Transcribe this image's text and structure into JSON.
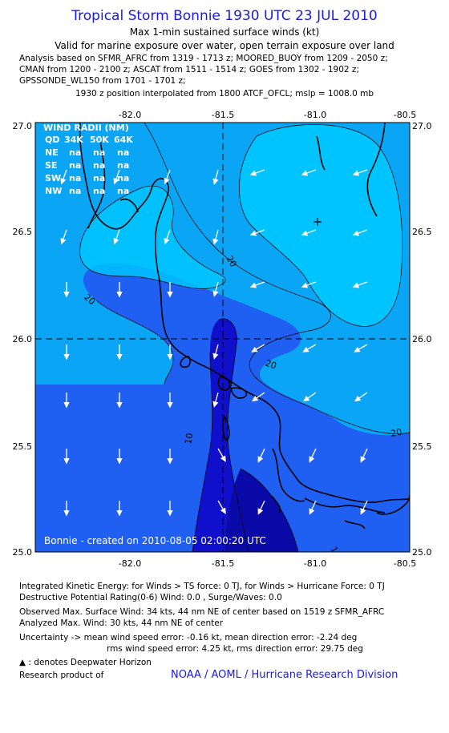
{
  "header": {
    "title": "Tropical Storm Bonnie 1930 UTC 23 JUL 2010",
    "subtitle": "Max 1-min sustained surface winds (kt)",
    "valid_line": "Valid for marine exposure over water, open terrain exposure over land",
    "analysis_lines": [
      "Analysis based on SFMR_AFRC from 1319 - 1713 z; MOORED_BUOY from 1209 - 2050 z;",
      "CMAN from 1200 - 2100 z; ASCAT from 1511 - 1514 z; GOES from 1302 - 1902 z;",
      "GPSSONDE_WL150 from 1701 - 1701 z;"
    ],
    "interpolation_line": "1930 z position interpolated from 1800 ATCF_OFCL; mslp = 1008.0 mb"
  },
  "map": {
    "x_ticks": [
      "-82.0",
      "-81.5",
      "-81.0",
      "-80.5"
    ],
    "y_ticks": [
      "27.0",
      "26.5",
      "26.0",
      "25.5",
      "25.0"
    ],
    "lon_range": [
      -82.45,
      -80.5
    ],
    "lat_range": [
      25.0,
      27.0
    ],
    "center": {
      "lon": -81.5,
      "lat": 26.0
    },
    "max_wind_marker": {
      "lon": -80.95,
      "lat": 26.55
    },
    "contour_labels": [
      "20",
      "20",
      "20",
      "20",
      "10",
      "10"
    ],
    "wind_radii": {
      "title": "WIND RADII (NM)",
      "header": [
        "QD",
        "34K",
        "50K",
        "64K"
      ],
      "rows": [
        [
          "NE",
          "na",
          "na",
          "na"
        ],
        [
          "SE",
          "na",
          "na",
          "na"
        ],
        [
          "SW",
          "na",
          "na",
          "na"
        ],
        [
          "NW",
          "na",
          "na",
          "na"
        ]
      ]
    },
    "credit": "Bonnie - created on 2010-08-05 02:00:20 UTC",
    "colors": {
      "band_lt10": "#1010cc",
      "band_10_20": "#1f5ff2",
      "band_20_30": "#0aa6f5",
      "band_30plus": "#00c4ff",
      "coast": "#000000"
    }
  },
  "footer": {
    "ike": "Integrated Kinetic Energy:  for Winds > TS force: 0 TJ,  for Winds > Hurricane Force: 0 TJ",
    "dpr": "Destructive Potential Rating(0-6)   Wind: 0.0 , Surge/Waves: 0.0",
    "observed": "Observed Max. Surface Wind: 34 kts, 44 nm NE of center based on 1519 z SFMR_AFRC",
    "analyzed": "Analyzed Max. Wind: 30 kts, 44 nm NE of center",
    "uncertainty1": "Uncertainty -> mean wind speed error:  -0.16 kt,   mean direction error:  -2.24 deg",
    "uncertainty2": "rms wind speed error: 4.25 kt,   rms direction error: 29.75 deg",
    "deepwater": ": denotes Deepwater Horizon",
    "research": "Research product of",
    "noaa": "NOAA / AOML / Hurricane Research Division"
  }
}
